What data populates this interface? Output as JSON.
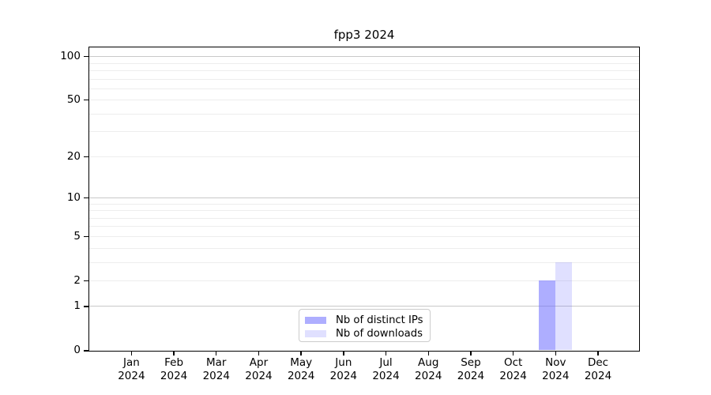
{
  "chart_data": {
    "type": "bar",
    "title": "fpp3 2024",
    "categories": [
      "Jan",
      "Feb",
      "Mar",
      "Apr",
      "May",
      "Jun",
      "Jul",
      "Aug",
      "Sep",
      "Oct",
      "Nov",
      "Dec"
    ],
    "year": "2024",
    "series": [
      {
        "name": "Nb of distinct IPs",
        "color": "rgba(102,102,255,0.53)",
        "values": [
          0,
          0,
          0,
          0,
          0,
          0,
          0,
          0,
          0,
          0,
          2,
          0
        ]
      },
      {
        "name": "Nb of downloads",
        "color": "rgba(102,102,255,0.20)",
        "values": [
          0,
          0,
          0,
          0,
          0,
          0,
          0,
          0,
          0,
          0,
          3,
          0
        ]
      }
    ],
    "y_axis": {
      "scale": "log10(1+y)",
      "ticks": [
        0,
        1,
        2,
        5,
        10,
        20,
        50,
        100
      ],
      "major_gridlines": [
        1,
        10,
        100
      ],
      "minor_gridlines": [
        2,
        3,
        4,
        5,
        6,
        7,
        8,
        9,
        20,
        30,
        40,
        50,
        60,
        70,
        80,
        90
      ],
      "ylim": [
        0,
        117
      ]
    },
    "x_axis": {
      "tick_label_lines": [
        "month",
        "year"
      ]
    },
    "legend": {
      "position": "bottom-center"
    },
    "colors": {
      "major_grid": "#c9c9c9",
      "minor_grid": "#ededed",
      "axis": "#000000",
      "bar_base": "#6666ff"
    }
  }
}
